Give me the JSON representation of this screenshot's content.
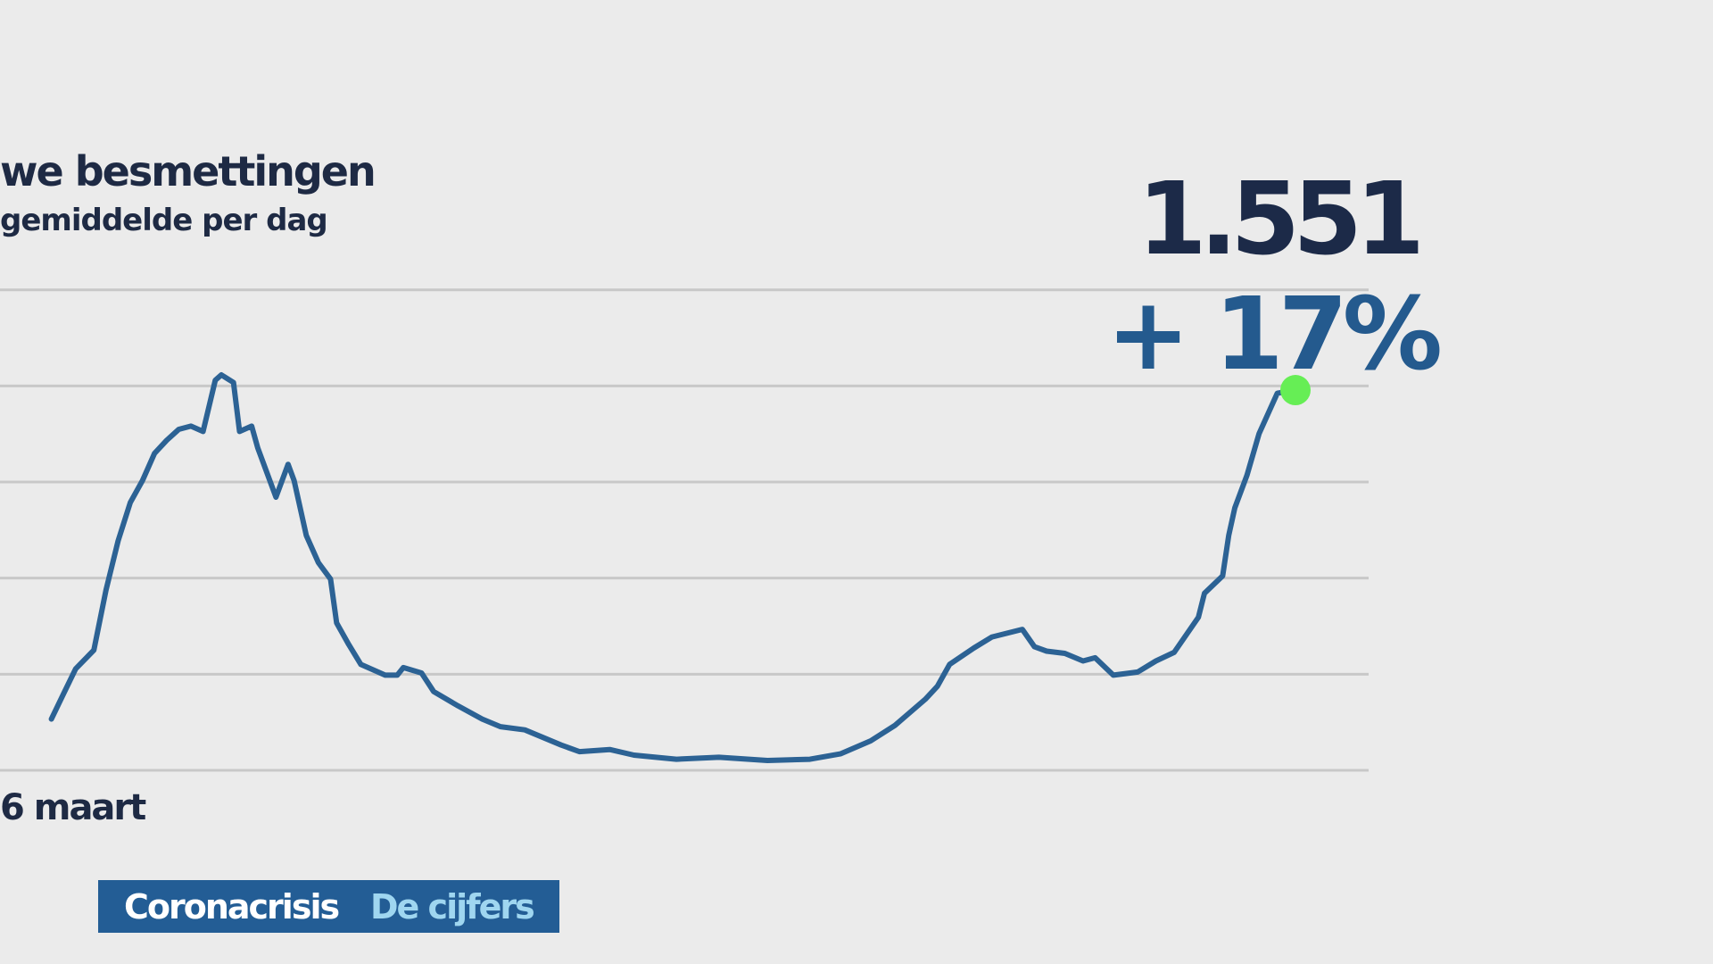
{
  "chart_data": {
    "type": "line",
    "title": "we besmettingen",
    "subtitle": "gemiddelde per dag",
    "headline": "1.551",
    "change": "+ 17%",
    "footer": {
      "section": "Coronacrisis",
      "topic": "De cijfers"
    },
    "x": [
      0,
      2,
      4,
      7,
      9,
      11,
      13,
      15,
      17,
      19,
      21,
      23,
      25,
      27,
      28,
      30,
      31,
      33,
      34,
      36,
      37,
      39,
      40,
      42,
      44,
      46,
      47,
      49,
      51,
      55,
      57,
      58,
      61,
      63,
      67,
      71,
      74,
      78,
      81,
      84,
      87,
      92,
      96,
      103,
      110,
      118,
      125,
      130,
      135,
      139,
      144,
      146,
      148,
      152,
      155,
      160,
      162,
      164,
      167,
      170,
      172,
      175,
      179,
      182,
      185,
      189,
      190,
      193,
      194,
      195,
      197,
      199,
      202,
      205
    ],
    "series": [
      {
        "name": "Nieuwe besmettingen",
        "color": "#2c6294",
        "values": [
          209,
          312,
          414,
          490,
          735,
          936,
          1092,
          1181,
          1293,
          1346,
          1391,
          1404,
          1382,
          1591,
          1613,
          1582,
          1382,
          1404,
          1315,
          1181,
          1114,
          1248,
          1181,
          958,
          847,
          780,
          601,
          513,
          432,
          388,
          388,
          419,
          397,
          321,
          263,
          209,
          178,
          165,
          134,
          103,
          76,
          85,
          62,
          45,
          53,
          40,
          45,
          67,
          120,
          183,
          290,
          343,
          432,
          499,
          544,
          575,
          504,
          486,
          477,
          446,
          459,
          388,
          401,
          446,
          481,
          624,
          722,
          793,
          958,
          1070,
          1203,
          1373,
          1538,
          1551
        ]
      }
    ],
    "highlight_color": "#66ee55",
    "xlim": [
      0,
      205
    ],
    "xticks": [
      {
        "value": 0,
        "label": "6 maart"
      }
    ],
    "ylim": [
      0,
      1960
    ],
    "yticks": [
      0,
      392,
      784,
      1176,
      1568,
      1960
    ],
    "grid": true
  }
}
